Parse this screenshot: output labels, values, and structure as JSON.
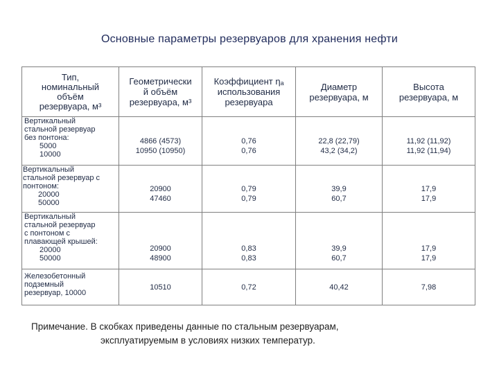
{
  "title": "Основные параметры резервуаров для хранения нефти",
  "headers": {
    "type": [
      "Тип,",
      "номинальный",
      "объём",
      "резервуара, м³"
    ],
    "volume": [
      "Геометрически",
      "й объём",
      "резервуара, м³"
    ],
    "coef": [
      "Коэффициент ηₐ",
      "использования",
      "резервуара"
    ],
    "diameter": [
      "Диаметр",
      "резервуара, м"
    ],
    "height": [
      "Высота",
      "резервуара, м"
    ]
  },
  "rows": [
    {
      "type_lines": [
        "Вертикальный",
        "стальной резервуар",
        "без понтона:"
      ],
      "values": [
        "5000",
        "10000"
      ],
      "volume": [
        "4866 (4573)",
        "10950 (10950)"
      ],
      "coef": [
        "0,76",
        "0,76"
      ],
      "diameter": [
        "22,8 (22,79)",
        "43,2 (34,2)"
      ],
      "height": [
        "11,92 (11,92)",
        "11,92 (11,94)"
      ]
    },
    {
      "type_lines": [
        "Вертикальный",
        "стальной резервуар с",
        "понтоном:"
      ],
      "values": [
        "20000",
        "50000"
      ],
      "volume": [
        "20900",
        "47460"
      ],
      "coef": [
        "0,79",
        "0,79"
      ],
      "diameter": [
        "39,9",
        "60,7"
      ],
      "height": [
        "17,9",
        "17,9"
      ]
    },
    {
      "type_lines": [
        "Вертикальный",
        "стальной резервуар",
        "с понтоном с",
        "плавающей крышей:"
      ],
      "values": [
        "20000",
        "50000"
      ],
      "volume": [
        "20900",
        "48900"
      ],
      "coef": [
        "0,83",
        "0,83"
      ],
      "diameter": [
        "39,9",
        "60,7"
      ],
      "height": [
        "17,9",
        "17,9"
      ]
    },
    {
      "type_lines": [
        "Железобетонный",
        "подземный",
        "резервуар, 10000"
      ],
      "values": [],
      "volume": [
        "10510"
      ],
      "coef": [
        "0,72"
      ],
      "diameter": [
        "40,42"
      ],
      "height": [
        "7,98"
      ]
    }
  ],
  "note": {
    "line1": "Примечание. В скобках приведены данные по стальным резервуарам,",
    "line2": "эксплуатируемым в условиях низких температур."
  }
}
